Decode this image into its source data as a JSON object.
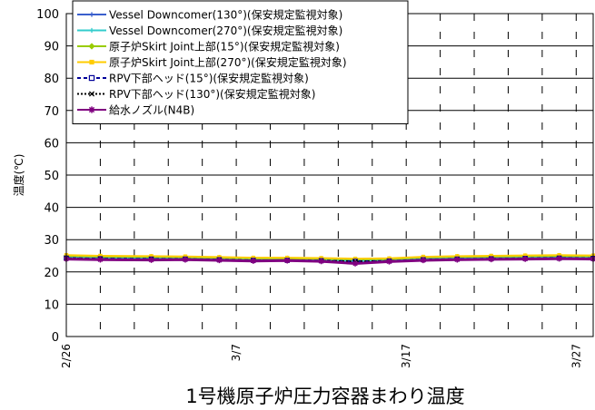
{
  "chart_data": {
    "type": "line",
    "title": "1号機原子炉圧力容器まわり温度",
    "ylabel": "温度(℃)",
    "xlabel": "",
    "ylim": [
      0,
      100
    ],
    "yticks": [
      0,
      10,
      20,
      30,
      40,
      50,
      60,
      70,
      80,
      90,
      100
    ],
    "x_start": "2/26",
    "x_end": "3/28",
    "x_ticks": [
      "2/26",
      "3/7",
      "3/17",
      "3/27"
    ],
    "grid": "horizontal solid, vertical dashed",
    "legend_position": "top-left",
    "x_dates": [
      "2/26",
      "2/28",
      "3/2",
      "3/4",
      "3/6",
      "3/8",
      "3/10",
      "3/12",
      "3/14",
      "3/16",
      "3/18",
      "3/20",
      "3/22",
      "3/24",
      "3/26",
      "3/28"
    ],
    "series": [
      {
        "name": "Vessel Downcomer(130°)(保安規定監視対象)",
        "color": "#3a5fcd",
        "marker": "plus",
        "dash": "",
        "values": [
          24.5,
          24.3,
          24.2,
          24.2,
          24.0,
          23.8,
          23.8,
          23.7,
          23.5,
          23.6,
          24.0,
          24.2,
          24.3,
          24.4,
          24.5,
          24.4
        ]
      },
      {
        "name": "Vessel Downcomer(270°)(保安規定監視対象)",
        "color": "#33cccc",
        "marker": "plus",
        "dash": "",
        "values": [
          24.4,
          24.2,
          24.1,
          24.1,
          23.9,
          23.7,
          23.7,
          23.6,
          23.4,
          23.5,
          23.9,
          24.1,
          24.2,
          24.3,
          24.4,
          24.3
        ]
      },
      {
        "name": "原子炉Skirt Joint上部(15°)(保安規定監視対象)",
        "color": "#99cc00",
        "marker": "diamond",
        "dash": "",
        "values": [
          25.0,
          24.8,
          24.7,
          24.6,
          24.4,
          24.2,
          24.2,
          24.1,
          23.9,
          24.0,
          24.5,
          24.7,
          24.8,
          24.9,
          25.0,
          24.9
        ]
      },
      {
        "name": "原子炉Skirt Joint上部(270°)(保安規定監視対象)",
        "color": "#ffcc00",
        "marker": "square",
        "dash": "",
        "values": [
          25.2,
          25.0,
          24.9,
          24.8,
          24.6,
          24.4,
          24.4,
          24.3,
          24.1,
          24.2,
          24.7,
          24.9,
          25.0,
          25.1,
          25.2,
          25.1
        ]
      },
      {
        "name": "RPV下部ヘッド(15°)(保安規定監視対象)",
        "color": "#000099",
        "marker": "square-open",
        "dash": "4,3",
        "values": [
          24.3,
          24.1,
          24.0,
          24.0,
          23.8,
          23.6,
          23.6,
          23.5,
          23.3,
          23.4,
          23.8,
          24.0,
          24.1,
          24.2,
          24.3,
          24.2
        ]
      },
      {
        "name": "RPV下部ヘッド(130°)(保安規定監視対象)",
        "color": "#000000",
        "marker": "x",
        "dash": "2,2",
        "values": [
          24.2,
          24.0,
          23.9,
          23.9,
          23.7,
          23.5,
          23.5,
          23.4,
          23.2,
          23.3,
          23.7,
          23.9,
          24.0,
          24.1,
          24.2,
          24.1
        ]
      },
      {
        "name": "給水ノズル(N4B)",
        "color": "#800080",
        "marker": "star",
        "dash": "",
        "values": [
          24.0,
          23.8,
          23.7,
          23.8,
          23.6,
          23.4,
          23.5,
          23.3,
          22.6,
          23.2,
          23.6,
          23.8,
          23.9,
          24.0,
          24.1,
          24.0
        ]
      }
    ]
  }
}
